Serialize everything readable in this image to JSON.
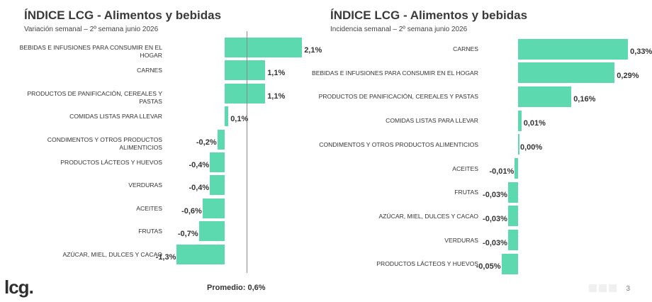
{
  "colors": {
    "bar": "#5dd9b0"
  },
  "charts": [
    {
      "title": "ÍNDICE LCG - Alimentos y bebidas",
      "subtitle": "Variación semanal – 2º semana junio 2026",
      "average_label": "Promedio: 0,6%",
      "average_value": 0.6
    },
    {
      "title": "ÍNDICE LCG - Alimentos y bebidas",
      "subtitle": "Incidencia semanal – 2º semana junio 2026"
    }
  ],
  "chart_data": [
    {
      "type": "bar",
      "orientation": "horizontal",
      "title": "ÍNDICE LCG - Alimentos y bebidas",
      "subtitle": "Variación semanal – 2º semana junio 2026",
      "unit": "%",
      "categories": [
        "BEBIDAS E INFUSIONES PARA CONSUMIR EN EL HOGAR",
        "CARNES",
        "PRODUCTOS DE PANIFICACIÓN, CEREALES Y PASTAS",
        "COMIDAS LISTAS PARA LLEVAR",
        "CONDIMENTOS Y OTROS PRODUCTOS ALIMENTICIOS",
        "PRODUCTOS LÁCTEOS Y HUEVOS",
        "VERDURAS",
        "ACEITES",
        "FRUTAS",
        "AZÚCAR, MIEL, DULCES Y CACAO"
      ],
      "values": [
        2.1,
        1.1,
        1.1,
        0.1,
        -0.2,
        -0.4,
        -0.4,
        -0.6,
        -0.7,
        -1.3
      ],
      "labels": [
        "2,1%",
        "1,1%",
        "1,1%",
        "0,1%",
        "-0,2%",
        "-0,4%",
        "-0,4%",
        "-0,6%",
        "-0,7%",
        "-1,3%"
      ],
      "average": 0.6
    },
    {
      "type": "bar",
      "orientation": "horizontal",
      "title": "ÍNDICE LCG - Alimentos y bebidas",
      "subtitle": "Incidencia semanal – 2º semana junio 2026",
      "unit": "%",
      "categories": [
        "CARNES",
        "BEBIDAS E INFUSIONES PARA CONSUMIR EN EL HOGAR",
        "PRODUCTOS DE PANIFICACIÓN, CEREALES Y PASTAS",
        "COMIDAS LISTAS PARA LLEVAR",
        "CONDIMENTOS Y OTROS PRODUCTOS ALIMENTICIOS",
        "ACEITES",
        "FRUTAS",
        "AZÚCAR, MIEL, DULCES Y CACAO",
        "VERDURAS",
        "PRODUCTOS LÁCTEOS Y HUEVOS"
      ],
      "values": [
        0.33,
        0.29,
        0.16,
        0.01,
        0.0,
        -0.01,
        -0.03,
        -0.03,
        -0.03,
        -0.05
      ],
      "labels": [
        "0,33%",
        "0,29%",
        "0,16%",
        "0,01%",
        "0,00%",
        "-0,01%",
        "-0,03%",
        "-0,03%",
        "-0,03%",
        "-0,05%"
      ]
    }
  ],
  "footer": {
    "logo": "lcg.",
    "page_number": "3"
  }
}
